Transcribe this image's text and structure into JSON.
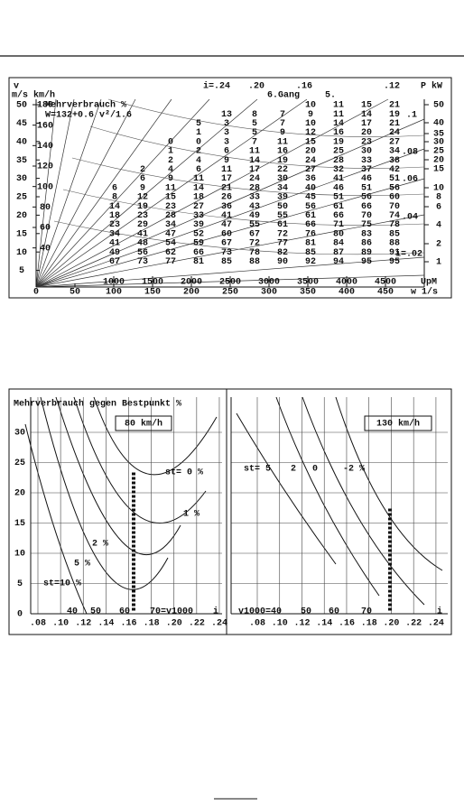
{
  "fig1": {
    "top_labels": [
      "v",
      "i=.24",
      ".20",
      ".16",
      ".12",
      "P kW"
    ],
    "units_label": "m/s  km/h",
    "note_title": "Mehrverbrauch %",
    "note_formula": "W=132+0.6 v²/1.6",
    "gear_labels": [
      "6.Gang",
      "5."
    ],
    "ratio_labels": [
      ".1",
      ".08",
      ".06",
      ".04",
      "i=.02"
    ],
    "ms_ticks": [
      5,
      10,
      15,
      20,
      25,
      30,
      35,
      40,
      45,
      50
    ],
    "kmh_ticks": [
      40,
      60,
      80,
      100,
      120,
      140,
      160,
      180
    ],
    "kw_ticks": [
      50,
      40,
      35,
      30,
      25,
      20,
      15,
      10,
      8,
      6,
      4,
      2,
      1
    ],
    "w_ticks": [
      0,
      50,
      100,
      150,
      200,
      250,
      300,
      350,
      400,
      450
    ],
    "upm_ticks": [
      1000,
      1500,
      2000,
      2500,
      3000,
      3500,
      4000,
      4500
    ],
    "upm_label": "UpM",
    "w_label": "w 1/s",
    "rows": [
      [
        10,
        11,
        15,
        21
      ],
      [
        13,
        8,
        7,
        9,
        11,
        14,
        19
      ],
      [
        5,
        3,
        5,
        7,
        10,
        14,
        17,
        21
      ],
      [
        1,
        3,
        5,
        9,
        12,
        16,
        20,
        24
      ],
      [
        0,
        0,
        3,
        7,
        11,
        15,
        19,
        23,
        27
      ],
      [
        1,
        2,
        6,
        11,
        16,
        20,
        25,
        30,
        34
      ],
      [
        2,
        4,
        9,
        14,
        19,
        24,
        28,
        33,
        38
      ],
      [
        2,
        4,
        6,
        11,
        17,
        22,
        27,
        32,
        37,
        42
      ],
      [
        6,
        9,
        11,
        17,
        24,
        30,
        36,
        41,
        46,
        51
      ],
      [
        6,
        9,
        11,
        14,
        21,
        28,
        34,
        40,
        46,
        51,
        56
      ],
      [
        8,
        12,
        15,
        18,
        26,
        33,
        39,
        45,
        51,
        56,
        60
      ],
      [
        14,
        19,
        23,
        27,
        36,
        43,
        50,
        56,
        61,
        66,
        70
      ],
      [
        18,
        23,
        28,
        33,
        41,
        49,
        55,
        61,
        66,
        70,
        74
      ],
      [
        23,
        29,
        34,
        39,
        47,
        55,
        61,
        66,
        71,
        75,
        78
      ],
      [
        34,
        41,
        47,
        52,
        60,
        67,
        72,
        76,
        80,
        83,
        85
      ],
      [
        41,
        48,
        54,
        59,
        67,
        72,
        77,
        81,
        84,
        86,
        88
      ],
      [
        49,
        56,
        62,
        66,
        73,
        78,
        82,
        85,
        87,
        89,
        91
      ],
      [
        67,
        73,
        77,
        81,
        85,
        88,
        90,
        92,
        94,
        95,
        95
      ]
    ]
  },
  "fig2": {
    "y_label": "Mehrverbrauch gegen Bestpunkt %",
    "yticks": [
      0,
      5,
      10,
      15,
      20,
      25,
      30
    ],
    "xticks": [
      {
        "value": 0.08,
        "label": ".08"
      },
      {
        "value": 0.1,
        "label": ".10"
      },
      {
        "value": 0.12,
        "label": ".12"
      },
      {
        "value": 0.14,
        "label": ".14"
      },
      {
        "value": 0.16,
        "label": ".16"
      },
      {
        "value": 0.18,
        "label": ".18"
      },
      {
        "value": 0.2,
        "label": ".20"
      },
      {
        "value": 0.22,
        "label": ".22"
      },
      {
        "value": 0.24,
        "label": ".24"
      }
    ],
    "x_label": "i",
    "left": {
      "speed": "80 km/h",
      "curve_labels": [
        "st= 0 %",
        "1 %",
        "2 %",
        "5 %",
        "st=10 %"
      ],
      "v1000_labels": [
        "40",
        "50",
        "60",
        "70=v1000"
      ]
    },
    "right": {
      "speed": "130 km/h",
      "curve_labels": [
        "st= 5",
        "2",
        "0",
        "-2 %"
      ],
      "v1000_labels": [
        "v1000=40",
        "50",
        "60",
        "70"
      ]
    }
  }
}
